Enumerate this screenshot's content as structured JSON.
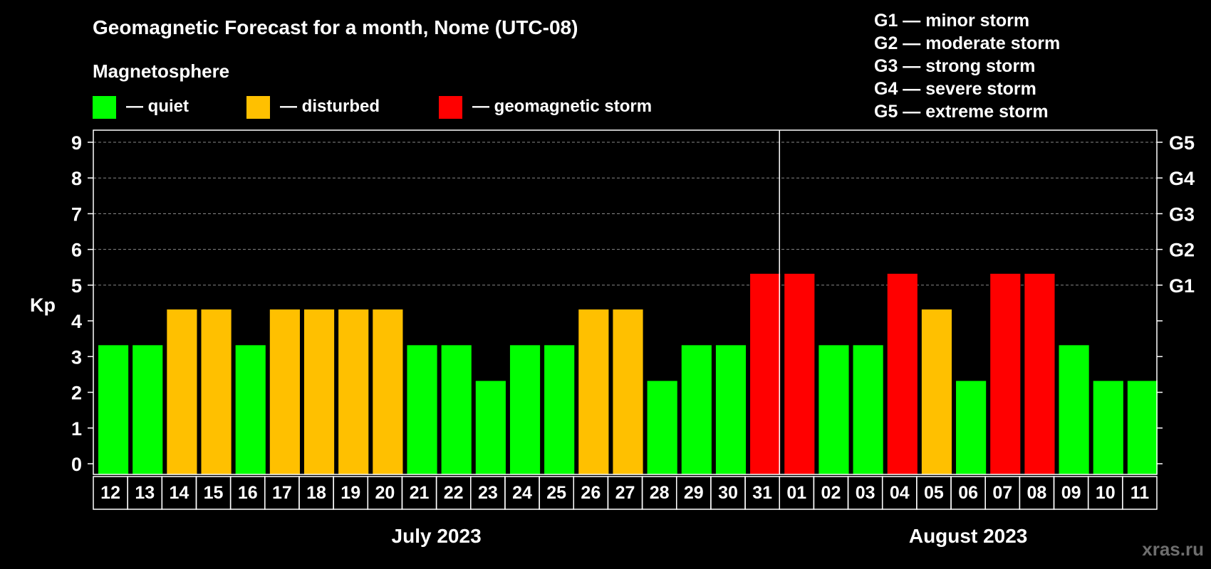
{
  "title": "Geomagnetic Forecast for a month, Nome (UTC-08)",
  "subtitle": "Magnetosphere",
  "legend": [
    {
      "label": "— quiet",
      "color": "#00ff00"
    },
    {
      "label": "— disturbed",
      "color": "#ffc000"
    },
    {
      "label": "— geomagnetic storm",
      "color": "#ff0000"
    }
  ],
  "g_scale": [
    "G1 — minor storm",
    "G2 — moderate storm",
    "G3 — strong storm",
    "G4 — severe storm",
    "G5 — extreme storm"
  ],
  "watermark": "xras.ru",
  "chart_data": {
    "type": "bar",
    "ylabel": "Kp",
    "ylim": [
      0,
      9
    ],
    "yticks": [
      "0",
      "1",
      "2",
      "3",
      "4",
      "5",
      "6",
      "7",
      "8",
      "9"
    ],
    "right_axis_labels": [
      {
        "value": 5,
        "label": "G1"
      },
      {
        "value": 6,
        "label": "G2"
      },
      {
        "value": 7,
        "label": "G3"
      },
      {
        "value": 8,
        "label": "G4"
      },
      {
        "value": 9,
        "label": "G5"
      }
    ],
    "grid": "dashed horizontal at 5-9",
    "categories": [
      "12",
      "13",
      "14",
      "15",
      "16",
      "17",
      "18",
      "19",
      "20",
      "21",
      "22",
      "23",
      "24",
      "25",
      "26",
      "27",
      "28",
      "29",
      "30",
      "31",
      "01",
      "02",
      "03",
      "04",
      "05",
      "06",
      "07",
      "08",
      "09",
      "10",
      "11"
    ],
    "values": [
      3,
      3,
      4,
      4,
      3,
      4,
      4,
      4,
      4,
      3,
      3,
      2,
      3,
      3,
      4,
      4,
      2,
      3,
      3,
      5,
      5,
      3,
      3,
      5,
      4,
      2,
      5,
      5,
      3,
      2,
      2
    ],
    "colors": {
      "quiet": "#00ff00",
      "disturbed": "#ffc000",
      "storm": "#ff0000"
    },
    "months": [
      {
        "label": "July 2023",
        "count": 20
      },
      {
        "label": "August 2023",
        "count": 11
      }
    ]
  }
}
